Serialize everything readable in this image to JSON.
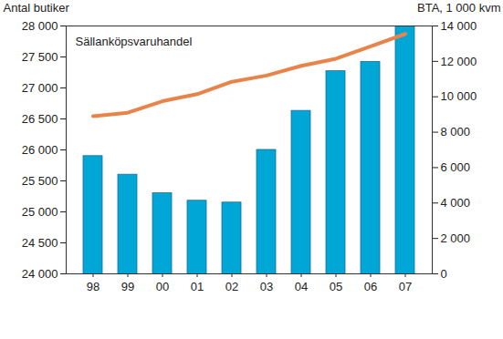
{
  "chart_data": {
    "type": "bar",
    "title": "Sällanköpsvaruhandel",
    "categories": [
      "98",
      "99",
      "00",
      "01",
      "02",
      "03",
      "04",
      "05",
      "06",
      "07"
    ],
    "series": [
      {
        "type": "bar",
        "color": "#00a6d6",
        "values": [
          25900,
          25600,
          25300,
          25180,
          25150,
          26000,
          26630,
          27270,
          27420,
          28000
        ]
      },
      {
        "type": "line",
        "color": "#e8844a",
        "axis": "y2",
        "values": [
          8900,
          9100,
          9750,
          10150,
          10850,
          11200,
          11750,
          12150,
          12850,
          13550
        ]
      }
    ],
    "ylabel": "Antal butiker",
    "y2label": "BTA, 1 000 kvm",
    "ylim": [
      24000,
      28000
    ],
    "yticks": [
      {
        "value": 24000,
        "label": "24 000"
      },
      {
        "value": 24500,
        "label": "24 500"
      },
      {
        "value": 25000,
        "label": "25 000"
      },
      {
        "value": 25500,
        "label": "25 500"
      },
      {
        "value": 26000,
        "label": "26 000"
      },
      {
        "value": 26500,
        "label": "26 500"
      },
      {
        "value": 27000,
        "label": "27 000"
      },
      {
        "value": 27500,
        "label": "27 500"
      },
      {
        "value": 28000,
        "label": "28 000"
      }
    ],
    "y2lim": [
      0,
      14000
    ],
    "y2ticks": [
      0,
      {
        "value": 2000,
        "label": "2 000"
      },
      {
        "value": 4000,
        "label": "4 000"
      },
      {
        "value": 6000,
        "label": "6 000"
      },
      {
        "value": 8000,
        "label": "8 000"
      },
      {
        "value": 10000,
        "label": "10 000"
      },
      {
        "value": 12000,
        "label": "12 000"
      },
      {
        "value": 14000,
        "label": "14 000"
      }
    ],
    "grid": false
  }
}
